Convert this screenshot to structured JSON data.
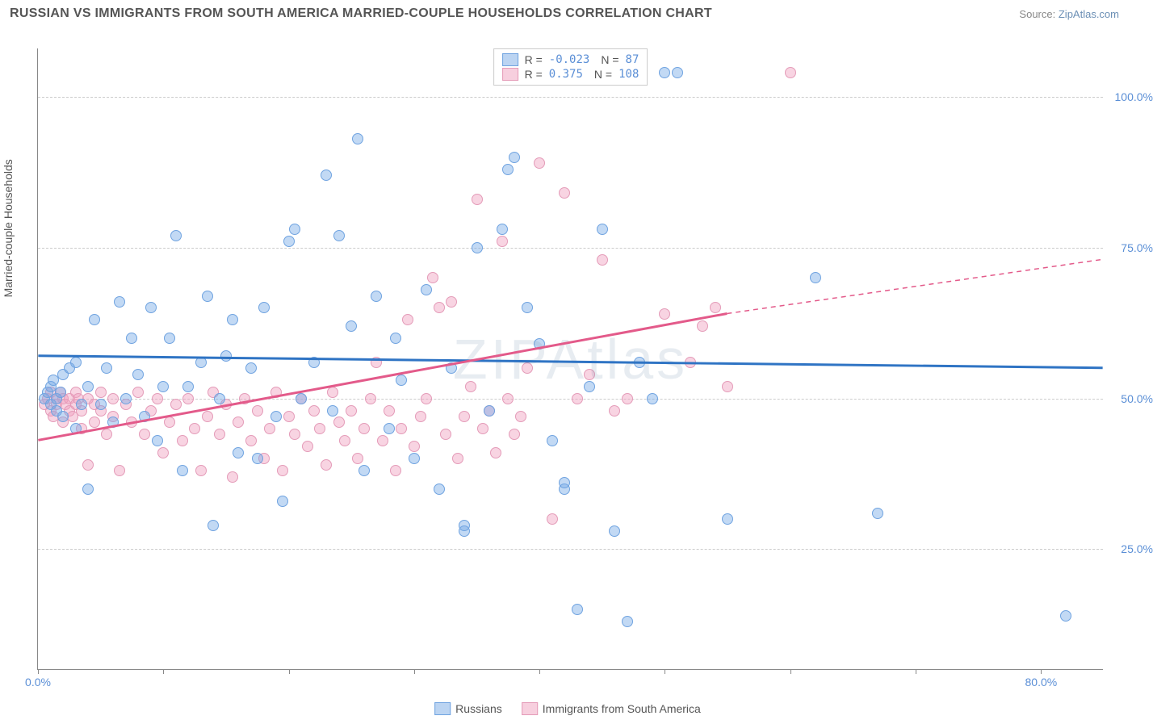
{
  "header": {
    "title": "RUSSIAN VS IMMIGRANTS FROM SOUTH AMERICA MARRIED-COUPLE HOUSEHOLDS CORRELATION CHART",
    "source_label": "Source:",
    "source_name": "ZipAtlas.com"
  },
  "watermark": "ZIPAtlas",
  "chart": {
    "type": "scatter",
    "ylabel": "Married-couple Households",
    "background_color": "#ffffff",
    "grid_color": "#cccccc",
    "axis_color": "#888888",
    "tick_label_color": "#5b8fd6",
    "xlim": [
      0,
      85
    ],
    "ylim": [
      5,
      108
    ],
    "xticks": [
      0,
      10,
      20,
      30,
      40,
      50,
      60,
      70,
      80
    ],
    "xtick_labels": {
      "0": "0.0%",
      "80": "80.0%"
    },
    "yticks": [
      25,
      50,
      75,
      100
    ],
    "ytick_labels": [
      "25.0%",
      "50.0%",
      "75.0%",
      "100.0%"
    ],
    "marker_radius": 7,
    "marker_border_width": 1.5,
    "series": {
      "russians": {
        "label": "Russians",
        "color_fill": "rgba(120,170,230,0.45)",
        "color_border": "#6fa3e0",
        "trend_color": "#2f74c4",
        "trend_width": 3,
        "R": "-0.023",
        "N": "87",
        "trend": {
          "x1": 0,
          "y1": 57,
          "x2": 85,
          "y2": 55
        },
        "points": [
          [
            0.5,
            50
          ],
          [
            0.8,
            51
          ],
          [
            1,
            52
          ],
          [
            1,
            49
          ],
          [
            1.2,
            53
          ],
          [
            1.5,
            48
          ],
          [
            1.5,
            50
          ],
          [
            1.8,
            51
          ],
          [
            2,
            47
          ],
          [
            2,
            54
          ],
          [
            2.5,
            55
          ],
          [
            3,
            45
          ],
          [
            3,
            56
          ],
          [
            3.5,
            49
          ],
          [
            4,
            35
          ],
          [
            4,
            52
          ],
          [
            4.5,
            63
          ],
          [
            5,
            49
          ],
          [
            5.5,
            55
          ],
          [
            6,
            46
          ],
          [
            6.5,
            66
          ],
          [
            7,
            50
          ],
          [
            7.5,
            60
          ],
          [
            8,
            54
          ],
          [
            8.5,
            47
          ],
          [
            9,
            65
          ],
          [
            9.5,
            43
          ],
          [
            10,
            52
          ],
          [
            10.5,
            60
          ],
          [
            11,
            77
          ],
          [
            11.5,
            38
          ],
          [
            12,
            52
          ],
          [
            13,
            56
          ],
          [
            13.5,
            67
          ],
          [
            14,
            29
          ],
          [
            14.5,
            50
          ],
          [
            15,
            57
          ],
          [
            15.5,
            63
          ],
          [
            16,
            41
          ],
          [
            17,
            55
          ],
          [
            17.5,
            40
          ],
          [
            18,
            65
          ],
          [
            19,
            47
          ],
          [
            19.5,
            33
          ],
          [
            20,
            76
          ],
          [
            20.5,
            78
          ],
          [
            21,
            50
          ],
          [
            22,
            56
          ],
          [
            23,
            87
          ],
          [
            23.5,
            48
          ],
          [
            24,
            77
          ],
          [
            25,
            62
          ],
          [
            25.5,
            93
          ],
          [
            26,
            38
          ],
          [
            27,
            67
          ],
          [
            28,
            45
          ],
          [
            28.5,
            60
          ],
          [
            29,
            53
          ],
          [
            30,
            40
          ],
          [
            31,
            68
          ],
          [
            32,
            35
          ],
          [
            33,
            55
          ],
          [
            34,
            28
          ],
          [
            34,
            29
          ],
          [
            35,
            75
          ],
          [
            36,
            48
          ],
          [
            37,
            78
          ],
          [
            37.5,
            88
          ],
          [
            38,
            90
          ],
          [
            39,
            65
          ],
          [
            40,
            59
          ],
          [
            41,
            43
          ],
          [
            42,
            35
          ],
          [
            42,
            36
          ],
          [
            43,
            15
          ],
          [
            44,
            52
          ],
          [
            45,
            78
          ],
          [
            46,
            28
          ],
          [
            47,
            13
          ],
          [
            48,
            56
          ],
          [
            49,
            50
          ],
          [
            50,
            104
          ],
          [
            51,
            104
          ],
          [
            55,
            30
          ],
          [
            62,
            70
          ],
          [
            67,
            31
          ],
          [
            82,
            14
          ]
        ]
      },
      "immigrants": {
        "label": "Immigrants from South America",
        "color_fill": "rgba(240,160,190,0.45)",
        "color_border": "#e49bb8",
        "trend_color": "#e35a8a",
        "trend_width": 3,
        "R": "0.375",
        "N": "108",
        "trend": {
          "x1": 0,
          "y1": 43,
          "x2": 55,
          "y2": 64
        },
        "trend_extrapolate": {
          "x1": 55,
          "y1": 64,
          "x2": 85,
          "y2": 73
        },
        "points": [
          [
            0.5,
            49
          ],
          [
            0.8,
            50
          ],
          [
            1,
            51
          ],
          [
            1,
            48
          ],
          [
            1.2,
            47
          ],
          [
            1.5,
            50
          ],
          [
            1.5,
            49
          ],
          [
            1.8,
            51
          ],
          [
            2,
            46
          ],
          [
            2,
            50
          ],
          [
            2.2,
            49
          ],
          [
            2.5,
            48
          ],
          [
            2.5,
            50
          ],
          [
            2.8,
            47
          ],
          [
            3,
            51
          ],
          [
            3,
            49
          ],
          [
            3.2,
            50
          ],
          [
            3.5,
            45
          ],
          [
            3.5,
            48
          ],
          [
            4,
            50
          ],
          [
            4,
            39
          ],
          [
            4.5,
            49
          ],
          [
            4.5,
            46
          ],
          [
            5,
            51
          ],
          [
            5,
            48
          ],
          [
            5.5,
            44
          ],
          [
            6,
            50
          ],
          [
            6,
            47
          ],
          [
            6.5,
            38
          ],
          [
            7,
            49
          ],
          [
            7.5,
            46
          ],
          [
            8,
            51
          ],
          [
            8.5,
            44
          ],
          [
            9,
            48
          ],
          [
            9.5,
            50
          ],
          [
            10,
            41
          ],
          [
            10.5,
            46
          ],
          [
            11,
            49
          ],
          [
            11.5,
            43
          ],
          [
            12,
            50
          ],
          [
            12.5,
            45
          ],
          [
            13,
            38
          ],
          [
            13.5,
            47
          ],
          [
            14,
            51
          ],
          [
            14.5,
            44
          ],
          [
            15,
            49
          ],
          [
            15.5,
            37
          ],
          [
            16,
            46
          ],
          [
            16.5,
            50
          ],
          [
            17,
            43
          ],
          [
            17.5,
            48
          ],
          [
            18,
            40
          ],
          [
            18.5,
            45
          ],
          [
            19,
            51
          ],
          [
            19.5,
            38
          ],
          [
            20,
            47
          ],
          [
            20.5,
            44
          ],
          [
            21,
            50
          ],
          [
            21.5,
            42
          ],
          [
            22,
            48
          ],
          [
            22.5,
            45
          ],
          [
            23,
            39
          ],
          [
            23.5,
            51
          ],
          [
            24,
            46
          ],
          [
            24.5,
            43
          ],
          [
            25,
            48
          ],
          [
            25.5,
            40
          ],
          [
            26,
            45
          ],
          [
            26.5,
            50
          ],
          [
            27,
            56
          ],
          [
            27.5,
            43
          ],
          [
            28,
            48
          ],
          [
            28.5,
            38
          ],
          [
            29,
            45
          ],
          [
            29.5,
            63
          ],
          [
            30,
            42
          ],
          [
            30.5,
            47
          ],
          [
            31,
            50
          ],
          [
            31.5,
            70
          ],
          [
            32,
            65
          ],
          [
            32.5,
            44
          ],
          [
            33,
            66
          ],
          [
            33.5,
            40
          ],
          [
            34,
            47
          ],
          [
            34.5,
            52
          ],
          [
            35,
            83
          ],
          [
            35.5,
            45
          ],
          [
            36,
            48
          ],
          [
            36.5,
            41
          ],
          [
            37,
            76
          ],
          [
            37.5,
            50
          ],
          [
            38,
            44
          ],
          [
            38.5,
            47
          ],
          [
            39,
            55
          ],
          [
            40,
            89
          ],
          [
            41,
            30
          ],
          [
            42,
            84
          ],
          [
            43,
            50
          ],
          [
            44,
            54
          ],
          [
            45,
            73
          ],
          [
            46,
            48
          ],
          [
            47,
            50
          ],
          [
            50,
            64
          ],
          [
            52,
            56
          ],
          [
            53,
            62
          ],
          [
            54,
            65
          ],
          [
            55,
            52
          ],
          [
            60,
            104
          ]
        ]
      }
    }
  }
}
